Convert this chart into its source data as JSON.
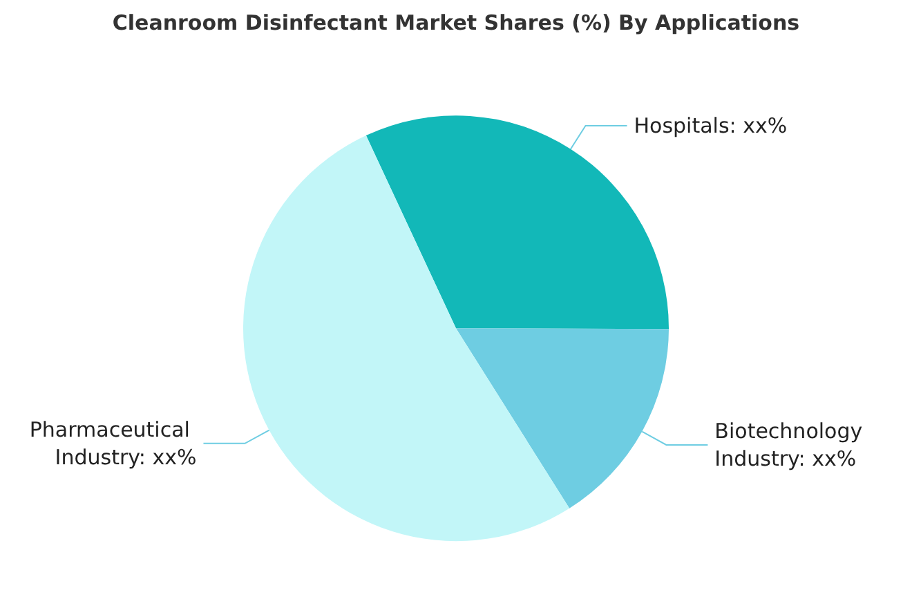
{
  "chart_data": {
    "type": "pie",
    "title": "Cleanroom Disinfectant Market Shares (%) By Applications",
    "categories": [
      "Hospitals",
      "Biotechnology Industry",
      "Pharmaceutical Industry"
    ],
    "values": [
      32,
      16,
      52
    ],
    "colors": [
      "#12b8b8",
      "#6ecde2",
      "#c2f6f8"
    ],
    "value_labels": [
      "xx%",
      "xx%",
      "xx%"
    ],
    "legend": false
  }
}
